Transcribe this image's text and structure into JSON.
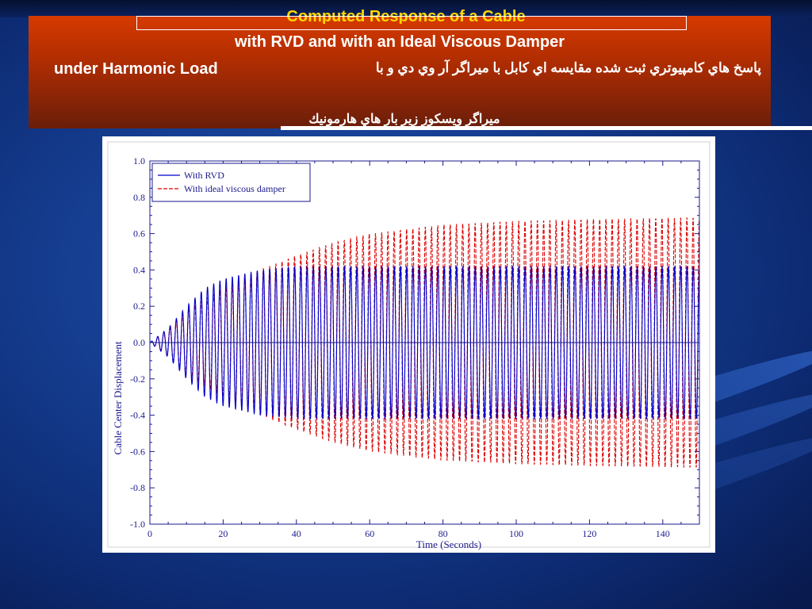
{
  "slide": {
    "title_line1": "Computed Response of a Cable",
    "title_line2": "with RVD and with  an Ideal Viscous Damper",
    "title_line3": "under Harmonic Load",
    "title_fa_line1": "پاسخ هاي كامپيوتري ثبت شده مقايسه اي كابل با ميراگر آر وي دي و با",
    "title_fa_line2": "ميراگر ويسكوز زير بار هاي هارمونيك",
    "colors": {
      "title_bg": "#c33400",
      "title_l1": "#ffd700",
      "background": "#163f93"
    }
  },
  "chart_data": {
    "type": "line",
    "title": "",
    "xlabel": "Time (Seconds)",
    "ylabel": "Cable Center Displacement",
    "xlim": [
      0,
      150
    ],
    "ylim": [
      -1.0,
      1.0
    ],
    "x_ticks": [
      0,
      20,
      40,
      60,
      80,
      100,
      120,
      140
    ],
    "x_tick_labels": [
      "0",
      "20",
      "40",
      "60",
      "80",
      "100",
      "120",
      "140"
    ],
    "y_ticks": [
      -1.0,
      -0.8,
      -0.6,
      -0.4,
      -0.2,
      0.0,
      0.2,
      0.4,
      0.6,
      0.8,
      1.0
    ],
    "y_tick_labels": [
      "-1.0",
      "-0.8",
      "-0.6",
      "-0.4",
      "-0.2",
      "0.0",
      "0.2",
      "0.4",
      "0.6",
      "0.8",
      "1.0"
    ],
    "grid": false,
    "legend": "top-left",
    "oscillation_period_s": 1.7,
    "series": [
      {
        "name": "With RVD",
        "color": "#0000cc",
        "dash": "solid",
        "envelope": [
          {
            "x": 0,
            "y": 0.0
          },
          {
            "x": 5,
            "y": 0.08
          },
          {
            "x": 10,
            "y": 0.2
          },
          {
            "x": 15,
            "y": 0.3
          },
          {
            "x": 20,
            "y": 0.35
          },
          {
            "x": 30,
            "y": 0.4
          },
          {
            "x": 40,
            "y": 0.42
          },
          {
            "x": 60,
            "y": 0.42
          },
          {
            "x": 150,
            "y": 0.42
          }
        ]
      },
      {
        "name": "With ideal viscous damper",
        "color": "#dd0000",
        "dash": "dashed",
        "envelope": [
          {
            "x": 0,
            "y": 0.0
          },
          {
            "x": 5,
            "y": 0.07
          },
          {
            "x": 10,
            "y": 0.18
          },
          {
            "x": 20,
            "y": 0.3
          },
          {
            "x": 30,
            "y": 0.4
          },
          {
            "x": 40,
            "y": 0.48
          },
          {
            "x": 50,
            "y": 0.55
          },
          {
            "x": 60,
            "y": 0.6
          },
          {
            "x": 80,
            "y": 0.65
          },
          {
            "x": 100,
            "y": 0.67
          },
          {
            "x": 120,
            "y": 0.68
          },
          {
            "x": 150,
            "y": 0.69
          }
        ]
      }
    ]
  }
}
